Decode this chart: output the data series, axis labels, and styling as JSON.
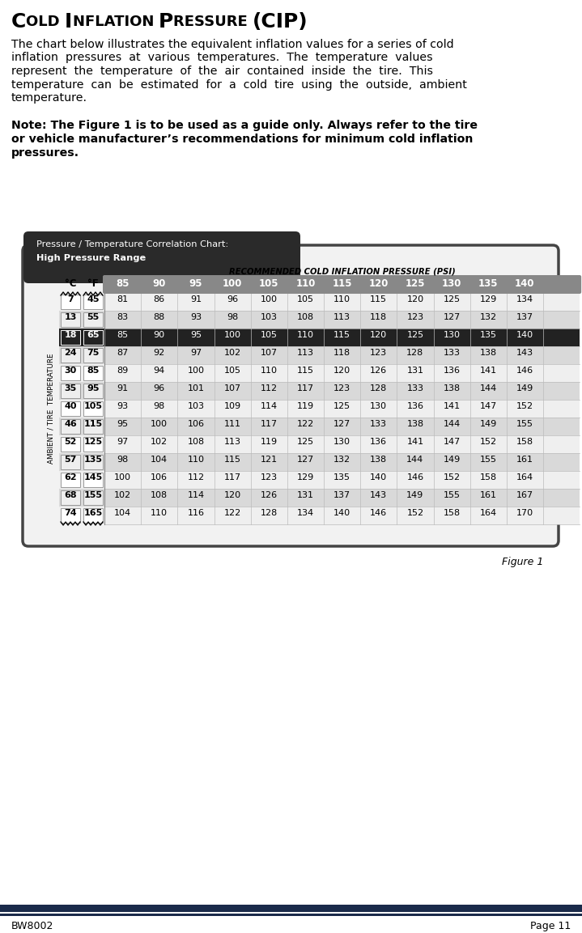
{
  "title_parts": [
    [
      "C",
      18,
      true
    ],
    [
      "OLD ",
      13,
      true
    ],
    [
      "I",
      18,
      true
    ],
    [
      "NFLATION ",
      13,
      true
    ],
    [
      "P",
      18,
      true
    ],
    [
      "RESSURE ",
      13,
      true
    ],
    [
      "(CIP)",
      18,
      true
    ]
  ],
  "paragraph1_lines": [
    "The chart below illustrates the equivalent inflation values for a series of cold",
    "inflation  pressures  at  various  temperatures.  The  temperature  values",
    "represent  the  temperature  of  the  air  contained  inside  the  tire.  This",
    "temperature  can  be  estimated  for  a  cold  tire  using  the  outside,  ambient",
    "temperature."
  ],
  "note_lines": [
    "Note: The Figure 1 is to be used as a guide only. Always refer to the tire",
    "or vehicle manufacturer’s recommendations for minimum cold inflation",
    "pressures."
  ],
  "figure_label": "Figure 1",
  "footer_left": "BW8002",
  "footer_right": "Page 11",
  "chart_title_line1": "Pressure / Temperature Correlation Chart:",
  "chart_title_line2": "High Pressure Range",
  "col_header_label": "RECOMMENDED COLD INFLATION PRESSURE (PSI)",
  "col_headers": [
    "85",
    "90",
    "95",
    "100",
    "105",
    "110",
    "115",
    "120",
    "125",
    "130",
    "135",
    "140"
  ],
  "temp_c": [
    7,
    13,
    18,
    24,
    30,
    35,
    40,
    46,
    52,
    57,
    62,
    68,
    74
  ],
  "temp_f": [
    45,
    55,
    65,
    75,
    85,
    95,
    105,
    115,
    125,
    135,
    145,
    155,
    165
  ],
  "table_data": [
    [
      81,
      86,
      91,
      96,
      100,
      105,
      110,
      115,
      120,
      125,
      129,
      134
    ],
    [
      83,
      88,
      93,
      98,
      103,
      108,
      113,
      118,
      123,
      127,
      132,
      137
    ],
    [
      85,
      90,
      95,
      100,
      105,
      110,
      115,
      120,
      125,
      130,
      135,
      140
    ],
    [
      87,
      92,
      97,
      102,
      107,
      113,
      118,
      123,
      128,
      133,
      138,
      143
    ],
    [
      89,
      94,
      100,
      105,
      110,
      115,
      120,
      126,
      131,
      136,
      141,
      146
    ],
    [
      91,
      96,
      101,
      107,
      112,
      117,
      123,
      128,
      133,
      138,
      144,
      149
    ],
    [
      93,
      98,
      103,
      109,
      114,
      119,
      125,
      130,
      136,
      141,
      147,
      152
    ],
    [
      95,
      100,
      106,
      111,
      117,
      122,
      127,
      133,
      138,
      144,
      149,
      155
    ],
    [
      97,
      102,
      108,
      113,
      119,
      125,
      130,
      136,
      141,
      147,
      152,
      158
    ],
    [
      98,
      104,
      110,
      115,
      121,
      127,
      132,
      138,
      144,
      149,
      155,
      161
    ],
    [
      100,
      106,
      112,
      117,
      123,
      129,
      135,
      140,
      146,
      152,
      158,
      164
    ],
    [
      102,
      108,
      114,
      120,
      126,
      131,
      137,
      143,
      149,
      155,
      161,
      167
    ],
    [
      104,
      110,
      116,
      122,
      128,
      134,
      140,
      146,
      152,
      158,
      164,
      170
    ]
  ],
  "highlight_row": 2,
  "header_bg": "#888888",
  "chart_box_bg": "#2a2a2a",
  "footer_bar_color": "#1a2a4a",
  "page_bg": "#ffffff",
  "ambient_label": "AMBIENT / TIRE  TEMPERATURE"
}
